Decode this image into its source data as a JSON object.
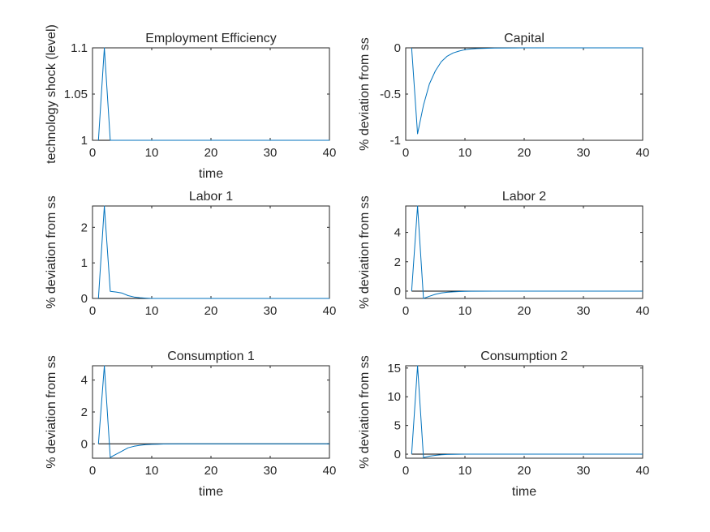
{
  "chart_data": [
    {
      "type": "line",
      "title": "Employment Efficiency",
      "xlabel": "time",
      "ylabel": "technology shock (level)",
      "xlim": [
        0,
        40
      ],
      "ylim": [
        1,
        1.1
      ],
      "xticks": [
        0,
        10,
        20,
        30,
        40
      ],
      "yticks": [
        1,
        1.05,
        1.1
      ],
      "ytick_labels": [
        "1",
        "1.05",
        "1.1"
      ],
      "x": [
        1,
        2,
        3,
        4,
        5,
        6,
        7,
        8,
        9,
        10,
        15,
        20,
        25,
        30,
        35,
        40
      ],
      "y": [
        1,
        1.1,
        1,
        1,
        1,
        1,
        1,
        1,
        1,
        1,
        1,
        1,
        1,
        1,
        1,
        1
      ],
      "reference_line": 1,
      "grid": false,
      "color": "#0072BD"
    },
    {
      "type": "line",
      "title": "Capital",
      "xlabel": "",
      "ylabel": "% deviation from ss",
      "xlim": [
        0,
        40
      ],
      "ylim": [
        -1,
        0
      ],
      "xticks": [
        0,
        10,
        20,
        30,
        40
      ],
      "yticks": [
        -1,
        -0.5,
        0
      ],
      "ytick_labels": [
        "-1",
        "-0.5",
        "0"
      ],
      "x": [
        1,
        2,
        3,
        4,
        5,
        6,
        7,
        8,
        9,
        10,
        11,
        12,
        15,
        20,
        25,
        30,
        35,
        40
      ],
      "y": [
        0,
        -0.93,
        -0.62,
        -0.39,
        -0.25,
        -0.15,
        -0.09,
        -0.055,
        -0.035,
        -0.02,
        -0.012,
        -0.008,
        -0.003,
        0,
        0,
        0,
        0,
        0
      ],
      "reference_line": 0,
      "grid": false,
      "color": "#0072BD"
    },
    {
      "type": "line",
      "title": "Labor 1",
      "xlabel": "",
      "ylabel": "% deviation from ss",
      "xlim": [
        0,
        40
      ],
      "ylim": [
        0,
        2.6
      ],
      "xticks": [
        0,
        10,
        20,
        30,
        40
      ],
      "yticks": [
        0,
        1,
        2
      ],
      "ytick_labels": [
        "0",
        "1",
        "2"
      ],
      "x": [
        1,
        2,
        3,
        4,
        5,
        6,
        7,
        8,
        9,
        10,
        15,
        20,
        25,
        30,
        35,
        40
      ],
      "y": [
        0,
        2.6,
        0.2,
        0.18,
        0.15,
        0.08,
        0.04,
        0.02,
        0.01,
        0,
        0,
        0,
        0,
        0,
        0,
        0
      ],
      "reference_line": 0,
      "grid": false,
      "color": "#0072BD"
    },
    {
      "type": "line",
      "title": "Labor 2",
      "xlabel": "",
      "ylabel": "% deviation from ss",
      "xlim": [
        0,
        40
      ],
      "ylim": [
        -0.5,
        5.8
      ],
      "xticks": [
        0,
        10,
        20,
        30,
        40
      ],
      "yticks": [
        0,
        2,
        4
      ],
      "ytick_labels": [
        "0",
        "2",
        "4"
      ],
      "x": [
        1,
        2,
        3,
        4,
        5,
        6,
        7,
        8,
        9,
        10,
        11,
        15,
        20,
        25,
        30,
        35,
        40
      ],
      "y": [
        0,
        5.8,
        -0.5,
        -0.35,
        -0.22,
        -0.13,
        -0.08,
        -0.05,
        -0.03,
        -0.02,
        -0.01,
        0,
        0,
        0,
        0,
        0,
        0
      ],
      "reference_line": 0,
      "grid": false,
      "color": "#0072BD"
    },
    {
      "type": "line",
      "title": "Consumption 1",
      "xlabel": "time",
      "ylabel": "% deviation from ss",
      "xlim": [
        0,
        40
      ],
      "ylim": [
        -0.9,
        4.9
      ],
      "xticks": [
        0,
        10,
        20,
        30,
        40
      ],
      "yticks": [
        0,
        2,
        4
      ],
      "ytick_labels": [
        "0",
        "2",
        "4"
      ],
      "x": [
        1,
        2,
        3,
        4,
        5,
        6,
        7,
        8,
        9,
        10,
        11,
        12,
        15,
        20,
        25,
        30,
        35,
        40
      ],
      "y": [
        0,
        4.9,
        -0.85,
        -0.65,
        -0.45,
        -0.25,
        -0.15,
        -0.09,
        -0.05,
        -0.03,
        -0.02,
        -0.01,
        0,
        0,
        0,
        0,
        0,
        0
      ],
      "reference_line": 0,
      "grid": false,
      "color": "#0072BD"
    },
    {
      "type": "line",
      "title": "Consumption 2",
      "xlabel": "time",
      "ylabel": "% deviation from ss",
      "xlim": [
        0,
        40
      ],
      "ylim": [
        -0.7,
        15.4
      ],
      "xticks": [
        0,
        10,
        20,
        30,
        40
      ],
      "yticks": [
        0,
        5,
        10,
        15
      ],
      "ytick_labels": [
        "0",
        "5",
        "10",
        "15"
      ],
      "x": [
        1,
        2,
        3,
        4,
        5,
        6,
        7,
        8,
        9,
        10,
        15,
        20,
        25,
        30,
        35,
        40
      ],
      "y": [
        0,
        15.4,
        -0.6,
        -0.35,
        -0.2,
        -0.1,
        -0.05,
        -0.02,
        -0.01,
        0,
        0,
        0,
        0,
        0,
        0,
        0
      ],
      "reference_line": 0,
      "grid": false,
      "color": "#0072BD"
    }
  ]
}
